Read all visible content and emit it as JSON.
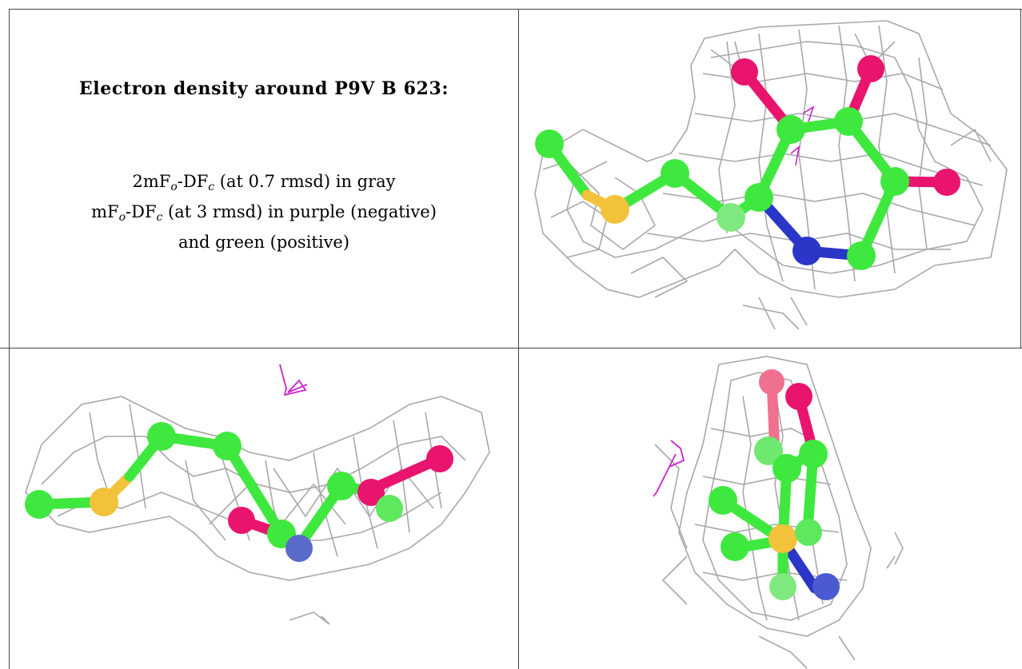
{
  "title": "Electron density around P9V B 623:",
  "legend": {
    "line1": {
      "prefix": "2mF",
      "sub1": "o",
      "mid": "-DF",
      "sub2": "c",
      "suffix": " (at 0.7 rmsd) in gray"
    },
    "line2": {
      "prefix": "mF",
      "sub1": "o",
      "mid": "-DF",
      "sub2": "c",
      "suffix": " (at 3 rmsd) in purple (negative)"
    },
    "line3": "and green (positive)"
  },
  "colors": {
    "mesh": "#a8a8a8",
    "carbon": "#3ee83e",
    "oxygen": "#e8146e",
    "sulfur": "#f2c23a",
    "nitrogen": "#2a36c8",
    "negative_density": "#cc22cc",
    "border": "#444444"
  },
  "views": [
    "top-right view",
    "bottom-left view",
    "bottom-right view"
  ]
}
